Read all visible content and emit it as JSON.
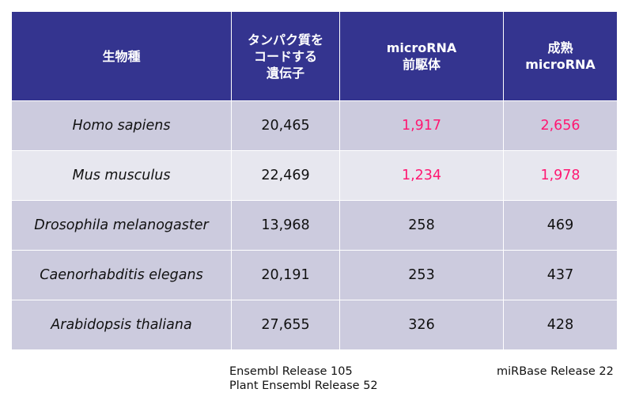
{
  "header": {
    "col1": [
      "生物種"
    ],
    "col2": [
      "タンパク質を",
      "コードする",
      "遺伝子"
    ],
    "col3": [
      "microRNA",
      "前駆体"
    ],
    "col4": [
      "成熟",
      "microRNA"
    ]
  },
  "rows": [
    {
      "species": "Homo sapiens",
      "genes": "20,465",
      "precursor": "1,917",
      "mature": "2,656"
    },
    {
      "species": "Mus musculus",
      "genes": "22,469",
      "precursor": "1,234",
      "mature": "1,978"
    },
    {
      "species": "Drosophila melanogaster",
      "genes": "13,968",
      "precursor": "258",
      "mature": "469"
    },
    {
      "species": "Caenorhabditis elegans",
      "genes": "20,191",
      "precursor": "253",
      "mature": "437"
    },
    {
      "species": "Arabidopsis thaliana",
      "genes": "27,655",
      "precursor": "326",
      "mature": "428"
    }
  ],
  "footnotes": {
    "ensembl": [
      "Ensembl Release 105",
      "Plant Ensembl Release 52"
    ],
    "mirbase": "miRBase Release 22"
  },
  "colors": {
    "header_bg": "#34348f",
    "row_dark": "#cccbde",
    "row_light": "#e7e7ef",
    "highlight": "#ff1872"
  }
}
